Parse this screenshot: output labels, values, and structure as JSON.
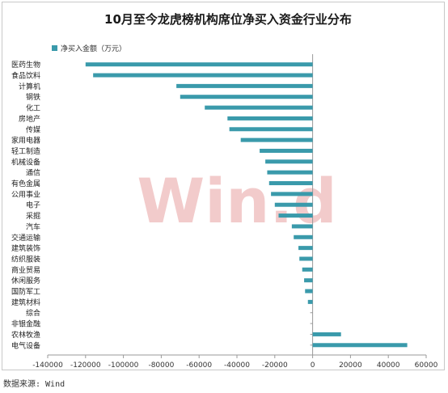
{
  "chart_data": {
    "type": "bar",
    "orientation": "horizontal",
    "title": "10月至今龙虎榜机构席位净买入资金行业分布",
    "xlabel": "",
    "ylabel": "",
    "xlim": [
      -140000,
      60000
    ],
    "xticks": [
      "-140000",
      "-120000",
      "-100000",
      "-80000",
      "-60000",
      "-40000",
      "-20000",
      "0",
      "20000",
      "40000",
      "60000"
    ],
    "grid": false,
    "legend_position": "top-left",
    "watermark": "Win.d",
    "series": [
      {
        "name": "净买入金额（万元）",
        "color": "#3a9aab",
        "categories": [
          "医药生物",
          "食品饮料",
          "计算机",
          "钢铁",
          "化工",
          "房地产",
          "传媒",
          "家用电器",
          "轻工制造",
          "机械设备",
          "通信",
          "有色金属",
          "公用事业",
          "电子",
          "采掘",
          "汽车",
          "交通运输",
          "建筑装饰",
          "纺织服装",
          "商业贸易",
          "休闲服务",
          "国防军工",
          "建筑材料",
          "综合",
          "非银金融",
          "农林牧渔",
          "电气设备"
        ],
        "values": [
          -120000,
          -116000,
          -72000,
          -70000,
          -57000,
          -45000,
          -44000,
          -38000,
          -28000,
          -25000,
          -24000,
          -23000,
          -22000,
          -20000,
          -18000,
          -11000,
          -10000,
          -7500,
          -7000,
          -5500,
          -4500,
          -4000,
          -2500,
          0,
          0,
          15000,
          50000
        ]
      }
    ]
  },
  "source_note": "数据来源: Wind"
}
